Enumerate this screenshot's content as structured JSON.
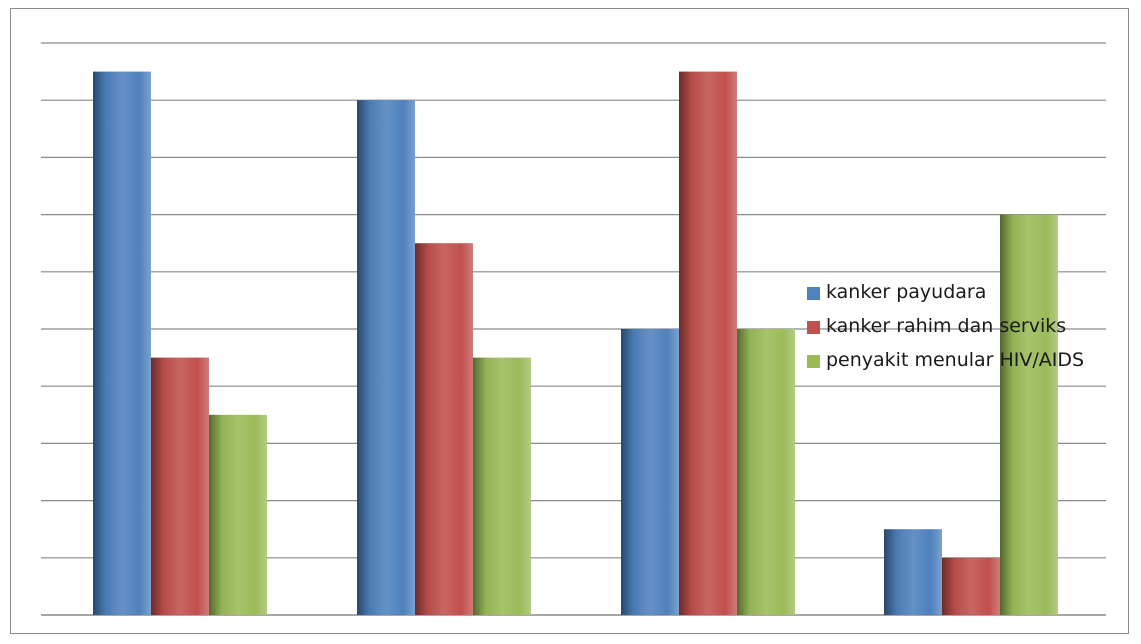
{
  "chart_data": {
    "type": "bar",
    "title": "",
    "xlabel": "",
    "ylabel": "",
    "categories": [
      "",
      "",
      "",
      ""
    ],
    "ylim": [
      0,
      10
    ],
    "grid": true,
    "legend_placement": "right",
    "series": [
      {
        "name": "kanker payudara",
        "color": "#4f81bd",
        "values": [
          9.5,
          9,
          5,
          1.5
        ]
      },
      {
        "name": "kanker rahim dan serviks",
        "color": "#c0504d",
        "values": [
          4.5,
          6.5,
          9.5,
          1
        ]
      },
      {
        "name": "penyakit menular HIV/AIDS",
        "color": "#9bbb59",
        "values": [
          3.5,
          4.5,
          5,
          7
        ]
      }
    ]
  }
}
